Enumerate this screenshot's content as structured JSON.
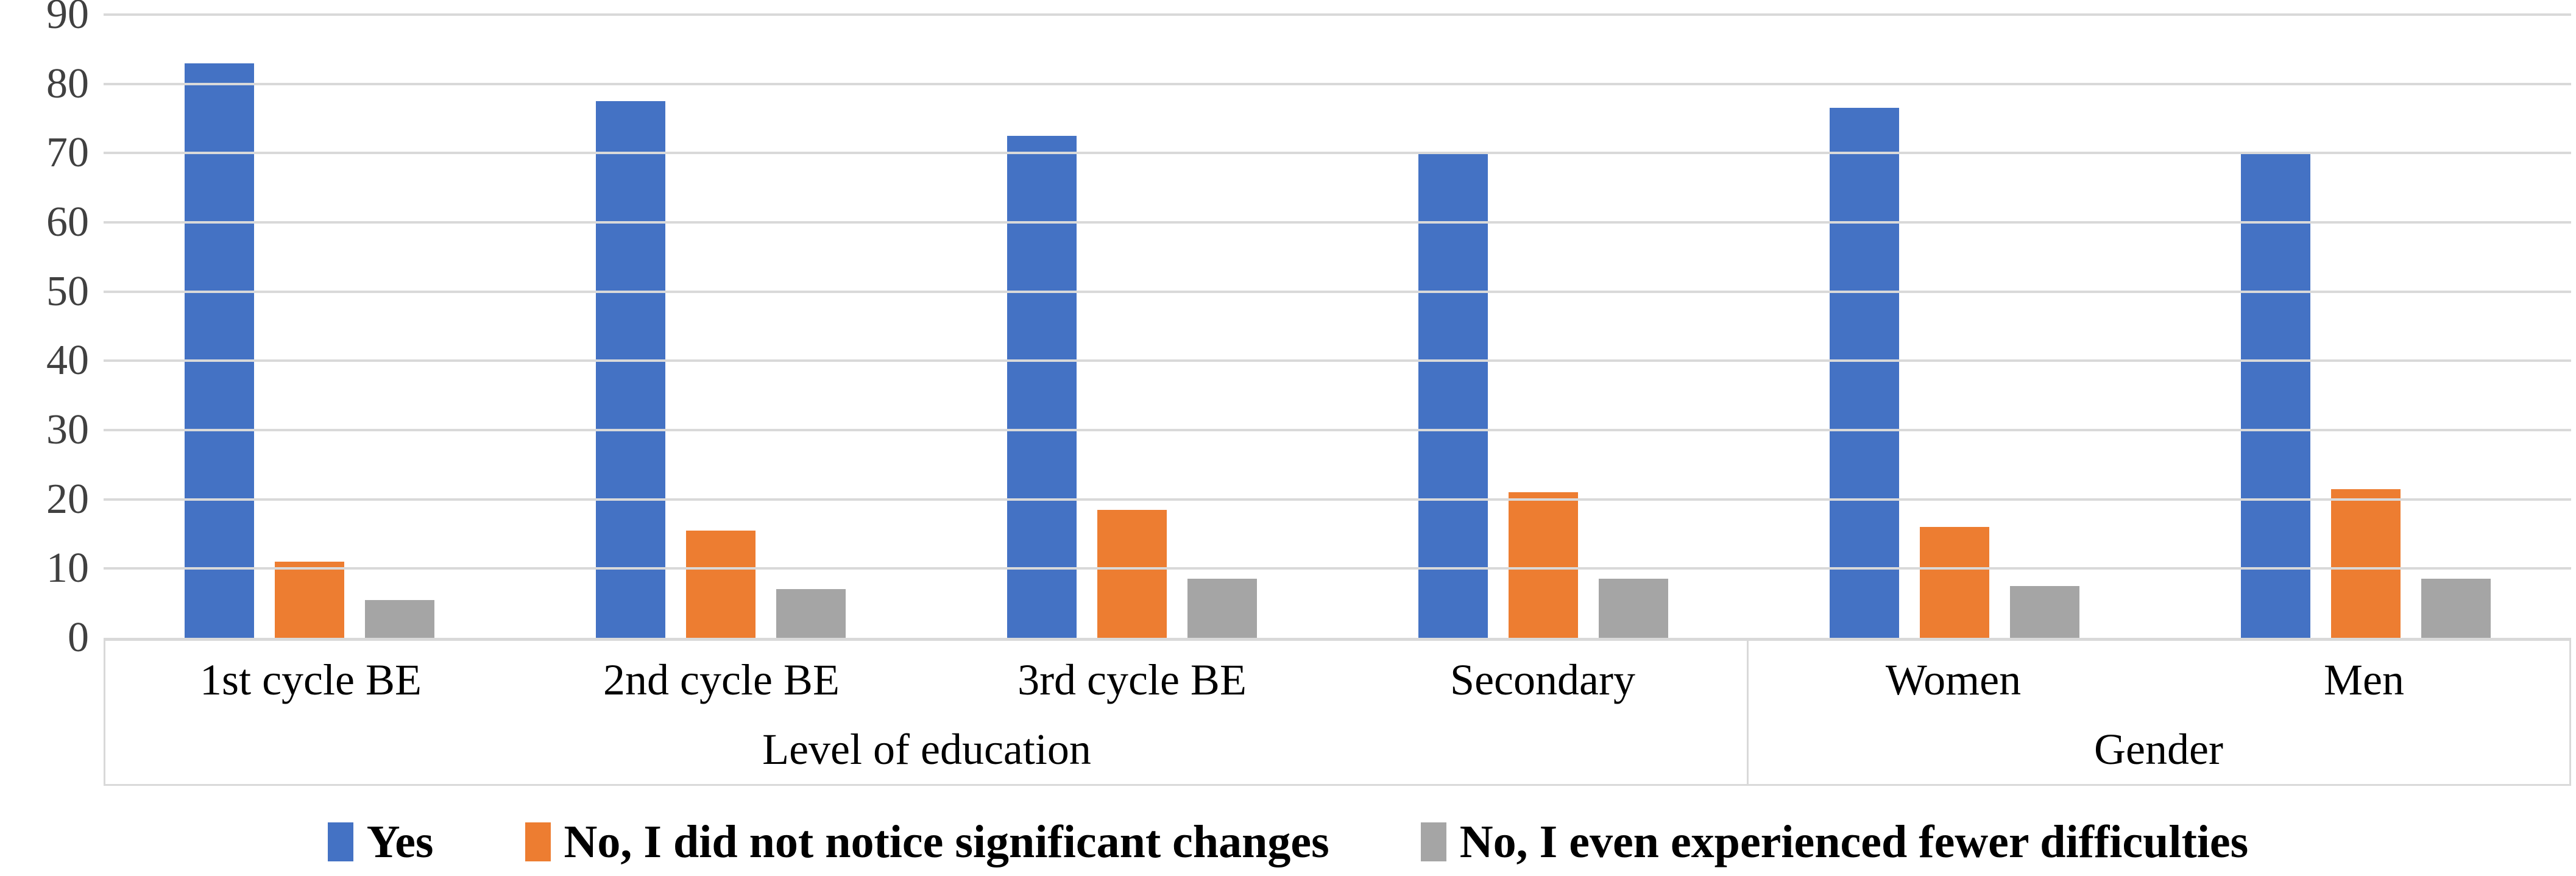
{
  "chart_data": {
    "type": "bar",
    "title": "",
    "categories": [
      "1st cycle BE",
      "2nd cycle BE",
      "3rd cycle BE",
      "Secondary",
      "Women",
      "Men"
    ],
    "category_groups": [
      {
        "label": "Level of education",
        "span": 4
      },
      {
        "label": "Gender",
        "span": 2
      }
    ],
    "series": [
      {
        "name": "Yes",
        "color": "#4472C4",
        "values": [
          83,
          77.5,
          72.5,
          70,
          76.5,
          70
        ]
      },
      {
        "name": "No, I did not notice significant changes",
        "color": "#ED7D31",
        "values": [
          11,
          15.5,
          18.5,
          21,
          16,
          21.5
        ]
      },
      {
        "name": "No, I even experienced fewer difficulties",
        "color": "#A5A5A5",
        "values": [
          5.5,
          7,
          8.5,
          8.5,
          7.5,
          8.5
        ]
      }
    ],
    "ylim": [
      0,
      90
    ],
    "y_ticks": [
      0,
      10,
      20,
      30,
      40,
      50,
      60,
      70,
      80,
      90
    ],
    "grid": true,
    "legend_position": "bottom"
  },
  "styles": {
    "grid_color": "#D9D9D9",
    "axis_text_color": "#404040",
    "category_text_color": "#000000",
    "background": "#FFFFFF"
  }
}
